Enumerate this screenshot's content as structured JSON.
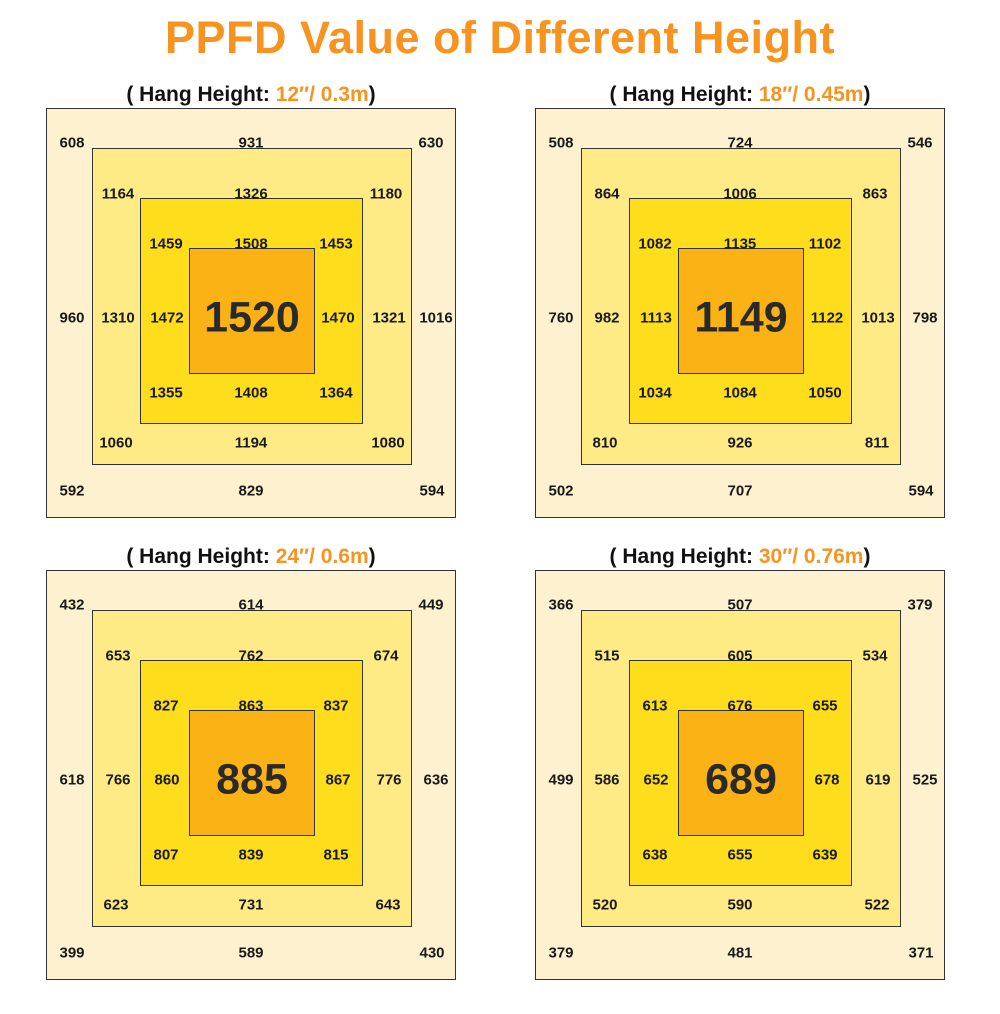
{
  "title": "PPFD Value of Different Height",
  "panels": [
    {
      "label_prefix": "( Hang Height: ",
      "height_value": "12″/ 0.3m",
      "label_suffix": ")",
      "center": "1520",
      "ring1": [
        "608",
        "931",
        "630",
        "1016",
        "594",
        "829",
        "592",
        "960"
      ],
      "ring2": [
        "1164",
        "1326",
        "1180",
        "1321",
        "1080",
        "1194",
        "1060",
        "1310"
      ],
      "ring3": [
        "1459",
        "1508",
        "1453",
        "1470",
        "1364",
        "1408",
        "1355",
        "1472"
      ]
    },
    {
      "label_prefix": "( Hang Height: ",
      "height_value": "18″/ 0.45m",
      "label_suffix": ")",
      "center": "1149",
      "ring1": [
        "508",
        "724",
        "546",
        "798",
        "594",
        "707",
        "502",
        "760"
      ],
      "ring2": [
        "864",
        "1006",
        "863",
        "1013",
        "811",
        "926",
        "810",
        "982"
      ],
      "ring3": [
        "1082",
        "1135",
        "1102",
        "1122",
        "1050",
        "1084",
        "1034",
        "1113"
      ]
    },
    {
      "label_prefix": "( Hang Height: ",
      "height_value": "24″/ 0.6m",
      "label_suffix": ")",
      "center": "885",
      "ring1": [
        "432",
        "614",
        "449",
        "636",
        "430",
        "589",
        "399",
        "618"
      ],
      "ring2": [
        "653",
        "762",
        "674",
        "776",
        "643",
        "731",
        "623",
        "766"
      ],
      "ring3": [
        "827",
        "863",
        "837",
        "867",
        "815",
        "839",
        "807",
        "860"
      ]
    },
    {
      "label_prefix": "( Hang Height: ",
      "height_value": "30″/ 0.76m",
      "label_suffix": ")",
      "center": "689",
      "ring1": [
        "366",
        "507",
        "379",
        "525",
        "371",
        "481",
        "379",
        "499"
      ],
      "ring2": [
        "515",
        "605",
        "534",
        "619",
        "522",
        "590",
        "520",
        "586"
      ],
      "ring3": [
        "613",
        "676",
        "655",
        "678",
        "639",
        "655",
        "638",
        "652"
      ]
    }
  ],
  "colors": {
    "accent": "#f7931e",
    "outer": "#fdf1cf",
    "ring2": "#feeb86",
    "ring3": "#fddd1c",
    "core": "#fbb214"
  }
}
